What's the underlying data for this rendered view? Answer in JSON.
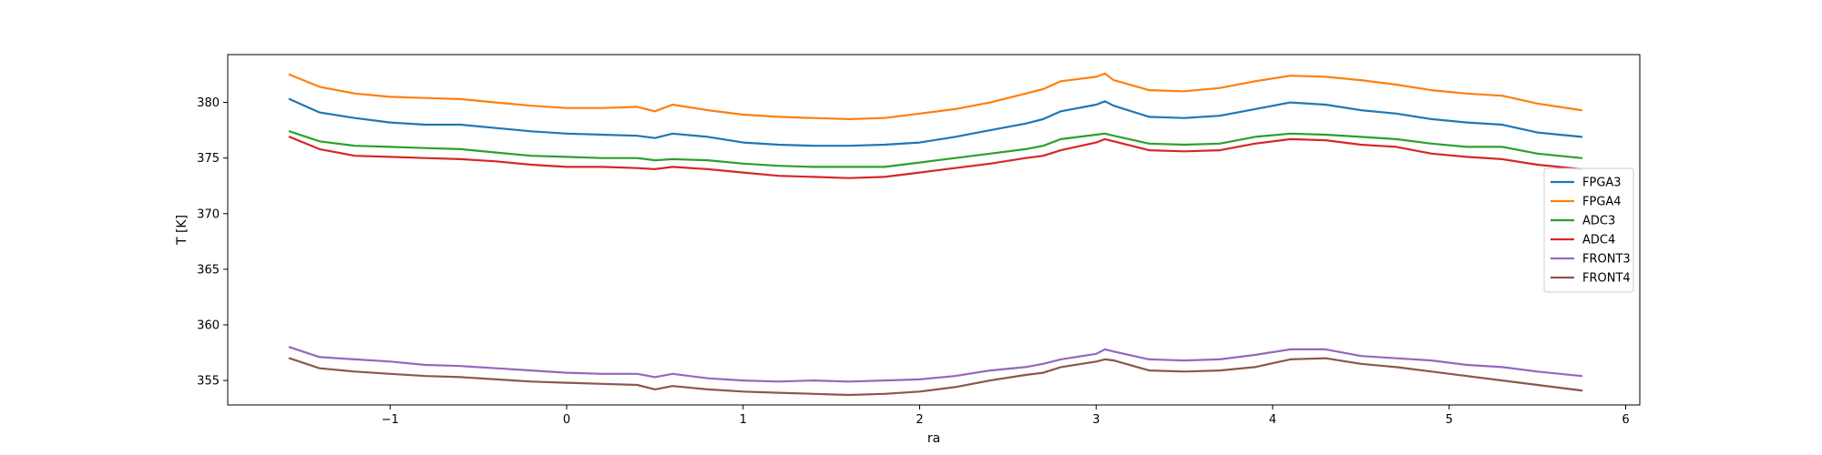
{
  "chart_data": {
    "type": "line",
    "title": "",
    "xlabel": "ra",
    "ylabel": "T [K]",
    "xlim": [
      -1.92,
      6.08
    ],
    "ylim": [
      352.8,
      384.3
    ],
    "xticks": [
      -1,
      0,
      1,
      2,
      3,
      4,
      5,
      6
    ],
    "xtick_labels": [
      "−1",
      "0",
      "1",
      "2",
      "3",
      "4",
      "5",
      "6"
    ],
    "yticks": [
      355,
      360,
      365,
      370,
      375,
      380
    ],
    "ytick_labels": [
      "355",
      "360",
      "365",
      "370",
      "375",
      "380"
    ],
    "grid": false,
    "legend_position": "center-right",
    "x": [
      -1.57,
      -1.4,
      -1.2,
      -1.0,
      -0.8,
      -0.6,
      -0.4,
      -0.2,
      0.0,
      0.2,
      0.4,
      0.5,
      0.6,
      0.8,
      1.0,
      1.2,
      1.4,
      1.6,
      1.8,
      2.0,
      2.2,
      2.4,
      2.6,
      2.7,
      2.8,
      3.0,
      3.05,
      3.1,
      3.3,
      3.5,
      3.7,
      3.9,
      4.1,
      4.3,
      4.5,
      4.7,
      4.9,
      5.1,
      5.3,
      5.5,
      5.75
    ],
    "series": [
      {
        "name": "FPGA3",
        "color": "#1f77b4",
        "values": [
          380.3,
          379.1,
          378.6,
          378.2,
          378.0,
          378.0,
          377.7,
          377.4,
          377.2,
          377.1,
          377.0,
          376.8,
          377.2,
          376.9,
          376.4,
          376.2,
          376.1,
          376.1,
          376.2,
          376.4,
          376.9,
          377.5,
          378.1,
          378.5,
          379.2,
          379.8,
          380.1,
          379.7,
          378.7,
          378.6,
          378.8,
          379.4,
          380.0,
          379.8,
          379.3,
          379.0,
          378.5,
          378.2,
          378.0,
          377.3,
          376.9
        ]
      },
      {
        "name": "FPGA4",
        "color": "#ff7f0e",
        "values": [
          382.5,
          381.4,
          380.8,
          380.5,
          380.4,
          380.3,
          380.0,
          379.7,
          379.5,
          379.5,
          379.6,
          379.2,
          379.8,
          379.3,
          378.9,
          378.7,
          378.6,
          378.5,
          378.6,
          379.0,
          379.4,
          380.0,
          380.8,
          381.2,
          381.9,
          382.3,
          382.6,
          382.0,
          381.1,
          381.0,
          381.3,
          381.9,
          382.4,
          382.3,
          382.0,
          381.6,
          381.1,
          380.8,
          380.6,
          379.9,
          379.3
        ]
      },
      {
        "name": "ADC3",
        "color": "#2ca02c",
        "values": [
          377.4,
          376.5,
          376.1,
          376.0,
          375.9,
          375.8,
          375.5,
          375.2,
          375.1,
          375.0,
          375.0,
          374.8,
          374.9,
          374.8,
          374.5,
          374.3,
          374.2,
          374.2,
          374.2,
          374.6,
          375.0,
          375.4,
          375.8,
          376.1,
          376.7,
          377.1,
          377.2,
          377.0,
          376.3,
          376.2,
          376.3,
          376.9,
          377.2,
          377.1,
          376.9,
          376.7,
          376.3,
          376.0,
          376.0,
          375.4,
          375.0
        ]
      },
      {
        "name": "ADC4",
        "color": "#d62728",
        "values": [
          376.9,
          375.8,
          375.2,
          375.1,
          375.0,
          374.9,
          374.7,
          374.4,
          374.2,
          374.2,
          374.1,
          374.0,
          374.2,
          374.0,
          373.7,
          373.4,
          373.3,
          373.2,
          373.3,
          373.7,
          374.1,
          374.5,
          375.0,
          375.2,
          375.7,
          376.4,
          376.7,
          376.5,
          375.7,
          375.6,
          375.7,
          376.3,
          376.7,
          376.6,
          376.2,
          376.0,
          375.4,
          375.1,
          374.9,
          374.4,
          374.0
        ]
      },
      {
        "name": "FRONT3",
        "color": "#9467bd",
        "values": [
          358.0,
          357.1,
          356.9,
          356.7,
          356.4,
          356.3,
          356.1,
          355.9,
          355.7,
          355.6,
          355.6,
          355.3,
          355.6,
          355.2,
          355.0,
          354.9,
          355.0,
          354.9,
          355.0,
          355.1,
          355.4,
          355.9,
          356.2,
          356.5,
          356.9,
          357.4,
          357.8,
          357.6,
          356.9,
          356.8,
          356.9,
          357.3,
          357.8,
          357.8,
          357.2,
          357.0,
          356.8,
          356.4,
          356.2,
          355.8,
          355.4
        ]
      },
      {
        "name": "FRONT4",
        "color": "#8c564b",
        "values": [
          357.0,
          356.1,
          355.8,
          355.6,
          355.4,
          355.3,
          355.1,
          354.9,
          354.8,
          354.7,
          354.6,
          354.2,
          354.5,
          354.2,
          354.0,
          353.9,
          353.8,
          353.7,
          353.8,
          354.0,
          354.4,
          355.0,
          355.5,
          355.7,
          356.2,
          356.7,
          356.9,
          356.8,
          355.9,
          355.8,
          355.9,
          356.2,
          356.9,
          357.0,
          356.5,
          356.2,
          355.8,
          355.4,
          355.0,
          354.6,
          354.1
        ]
      }
    ]
  }
}
